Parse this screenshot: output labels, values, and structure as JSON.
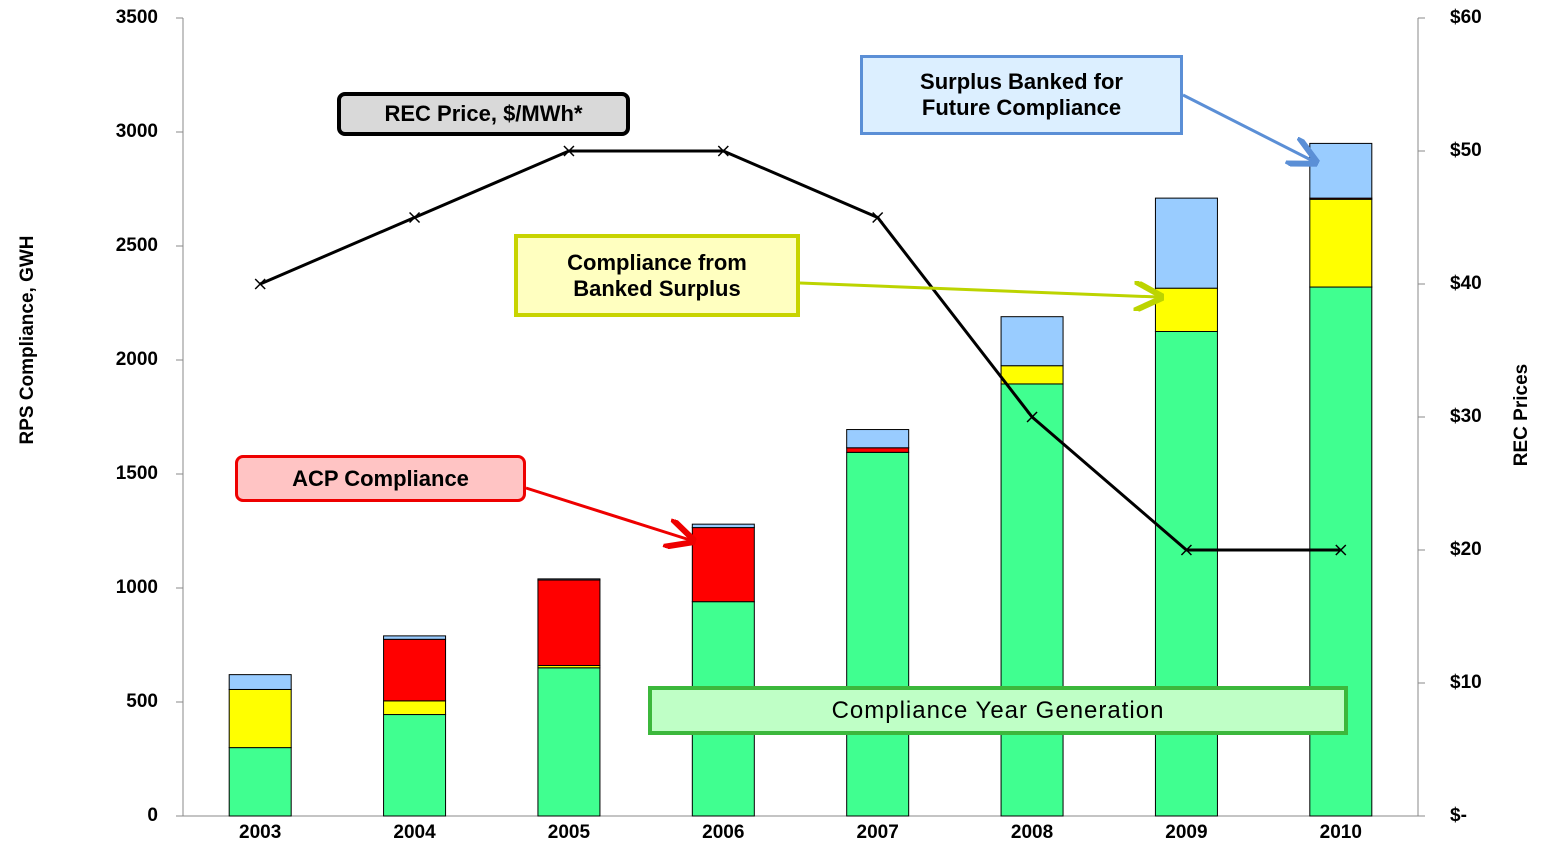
{
  "chart_data": {
    "type": "bar",
    "stacked": true,
    "categories": [
      "2003",
      "2004",
      "2005",
      "2006",
      "2007",
      "2008",
      "2009",
      "2010"
    ],
    "series": [
      {
        "name": "Compliance Year Generation",
        "color": "#40ff90",
        "values": [
          300,
          445,
          650,
          940,
          1595,
          1895,
          2125,
          2320
        ]
      },
      {
        "name": "Compliance from Banked Surplus",
        "color": "#ffff00",
        "values": [
          255,
          60,
          10,
          0,
          0,
          80,
          190,
          385
        ]
      },
      {
        "name": "ACP Compliance",
        "color": "#ff0000",
        "values": [
          0,
          270,
          375,
          325,
          20,
          0,
          0,
          5
        ]
      },
      {
        "name": "Surplus Banked for Future Compliance",
        "color": "#99ccff",
        "values": [
          65,
          15,
          5,
          15,
          80,
          215,
          395,
          240
        ]
      },
      {
        "name": "REC Price, $/MWh*",
        "type": "line",
        "axis": "y2",
        "color": "#000000",
        "values": [
          40,
          45,
          50,
          50,
          45,
          30,
          20,
          20
        ]
      }
    ],
    "y_label": "RPS Compliance, GWH",
    "y2_label": "REC Prices",
    "ylim": [
      0,
      3500
    ],
    "yticks": [
      0,
      500,
      1000,
      1500,
      2000,
      2500,
      3000,
      3500
    ],
    "y2lim": [
      0,
      60
    ],
    "y2ticks": [
      {
        "value": 0,
        "label": "$-"
      },
      {
        "value": 10,
        "label": "$10"
      },
      {
        "value": 20,
        "label": "$20"
      },
      {
        "value": 30,
        "label": "$30"
      },
      {
        "value": 40,
        "label": "$40"
      },
      {
        "value": 50,
        "label": "$50"
      },
      {
        "value": 60,
        "label": "$60"
      }
    ],
    "grid": false
  }
}
